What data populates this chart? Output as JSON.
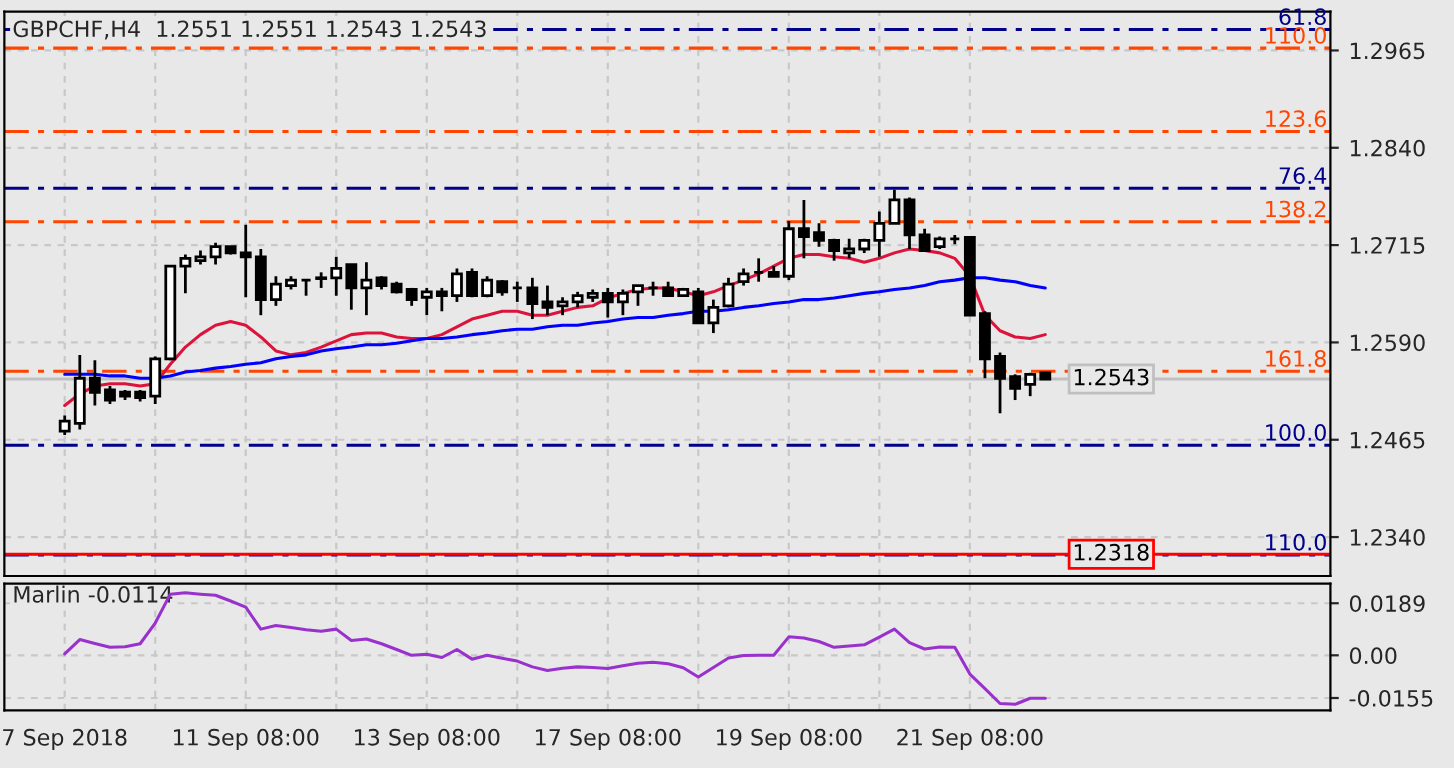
{
  "chart_data": [
    {
      "type": "candlestick",
      "title": "GBPCHF,H4  1.2551 1.2551 1.2543 1.2543",
      "categories": [
        null,
        null,
        null,
        null,
        null,
        null,
        null,
        null,
        null,
        null,
        null,
        null,
        null,
        null,
        null,
        null,
        null,
        null,
        null,
        null,
        null,
        null,
        null,
        null,
        null,
        null,
        null,
        null,
        null,
        null,
        null,
        null,
        null,
        null,
        null,
        null,
        null,
        null,
        null,
        null,
        null,
        null,
        null,
        null,
        null,
        null,
        null,
        null,
        null,
        null,
        null,
        null,
        null,
        null,
        null,
        null,
        null,
        null,
        null,
        null,
        null,
        null,
        null,
        null,
        null,
        null
      ],
      "ohlc": [
        [
          1.2476,
          1.2496,
          1.2471,
          1.2489
        ],
        [
          1.2486,
          1.2574,
          1.2478,
          1.2544
        ],
        [
          1.2544,
          1.2567,
          1.2509,
          1.2526
        ],
        [
          1.2529,
          1.2534,
          1.2511,
          1.2516
        ],
        [
          1.2526,
          1.2529,
          1.2516,
          1.2521
        ],
        [
          1.2526,
          1.2529,
          1.2514,
          1.2519
        ],
        [
          1.2521,
          1.2572,
          1.2511,
          1.2569
        ],
        [
          1.2569,
          1.2689,
          1.2567,
          1.2688
        ],
        [
          1.2688,
          1.2703,
          1.2653,
          1.2698
        ],
        [
          1.2695,
          1.2708,
          1.269,
          1.27
        ],
        [
          1.27,
          1.2718,
          1.269,
          1.2713
        ],
        [
          1.2713,
          1.2713,
          1.2703,
          1.2705
        ],
        [
          1.2705,
          1.2741,
          1.2648,
          1.27
        ],
        [
          1.27,
          1.271,
          1.2625,
          1.2645
        ],
        [
          1.2645,
          1.2675,
          1.2637,
          1.2665
        ],
        [
          1.2663,
          1.2675,
          1.2658,
          1.267
        ],
        [
          1.267,
          1.267,
          1.265,
          1.267
        ],
        [
          1.2672,
          1.268,
          1.266,
          1.2673
        ],
        [
          1.2673,
          1.27,
          1.265,
          1.2685
        ],
        [
          1.269,
          1.269,
          1.2632,
          1.266
        ],
        [
          1.266,
          1.2693,
          1.2625,
          1.267
        ],
        [
          1.2673,
          1.2675,
          1.2658,
          1.2663
        ],
        [
          1.2665,
          1.2668,
          1.2653,
          1.2655
        ],
        [
          1.2658,
          1.266,
          1.2637,
          1.2645
        ],
        [
          1.2648,
          1.266,
          1.2625,
          1.2655
        ],
        [
          1.2655,
          1.266,
          1.263,
          1.265
        ],
        [
          1.265,
          1.2685,
          1.2642,
          1.2678
        ],
        [
          1.268,
          1.2685,
          1.2648,
          1.265
        ],
        [
          1.265,
          1.2675,
          1.2648,
          1.267
        ],
        [
          1.2668,
          1.267,
          1.265,
          1.2655
        ],
        [
          1.266,
          1.2668,
          1.2642,
          1.266
        ],
        [
          1.266,
          1.2673,
          1.262,
          1.264
        ],
        [
          1.2642,
          1.2663,
          1.2625,
          1.2635
        ],
        [
          1.2637,
          1.2648,
          1.2625,
          1.2642
        ],
        [
          1.2642,
          1.2655,
          1.2635,
          1.265
        ],
        [
          1.2648,
          1.2658,
          1.2642,
          1.2653
        ],
        [
          1.2653,
          1.266,
          1.2622,
          1.2642
        ],
        [
          1.2642,
          1.2658,
          1.2625,
          1.2653
        ],
        [
          1.2655,
          1.2663,
          1.2637,
          1.2663
        ],
        [
          1.266,
          1.2668,
          1.265,
          1.266
        ],
        [
          1.266,
          1.2668,
          1.265,
          1.265
        ],
        [
          1.265,
          1.266,
          1.265,
          1.2658
        ],
        [
          1.2655,
          1.266,
          1.2615,
          1.2615
        ],
        [
          1.2615,
          1.2645,
          1.2602,
          1.2635
        ],
        [
          1.2637,
          1.2673,
          1.2635,
          1.2665
        ],
        [
          1.2668,
          1.2685,
          1.2663,
          1.2678
        ],
        [
          1.268,
          1.2698,
          1.2668,
          1.268
        ],
        [
          1.268,
          1.2688,
          1.2675,
          1.2675
        ],
        [
          1.2675,
          1.2746,
          1.267,
          1.2736
        ],
        [
          1.2736,
          1.2773,
          1.2698,
          1.2726
        ],
        [
          1.2731,
          1.2743,
          1.2713,
          1.2721
        ],
        [
          1.2721,
          1.2723,
          1.2695,
          1.2708
        ],
        [
          1.2705,
          1.2723,
          1.2698,
          1.271
        ],
        [
          1.271,
          1.2723,
          1.2705,
          1.2721
        ],
        [
          1.2721,
          1.2758,
          1.27,
          1.2743
        ],
        [
          1.2743,
          1.2786,
          1.2743,
          1.2773
        ],
        [
          1.2773,
          1.2776,
          1.271,
          1.2728
        ],
        [
          1.2728,
          1.2736,
          1.2708,
          1.2708
        ],
        [
          1.2713,
          1.2726,
          1.271,
          1.2723
        ],
        [
          1.2723,
          1.2728,
          1.2716,
          1.2723
        ],
        [
          1.2725,
          1.2725,
          1.2625,
          1.2625
        ],
        [
          1.2627,
          1.263,
          1.2544,
          1.2569
        ],
        [
          1.2572,
          1.2577,
          1.2499,
          1.2544
        ],
        [
          1.2546,
          1.2549,
          1.2516,
          1.2531
        ],
        [
          1.2536,
          1.2551,
          1.2521,
          1.2549
        ],
        [
          1.2551,
          1.2551,
          1.2543,
          1.2543
        ]
      ],
      "series": [
        {
          "type": "line",
          "color": "#dc143c",
          "values": [
            1.2509,
            1.2524,
            1.2534,
            1.2537,
            1.2537,
            1.2534,
            1.2537,
            1.2562,
            1.2584,
            1.26,
            1.2612,
            1.2617,
            1.2612,
            1.2597,
            1.2579,
            1.2574,
            1.2577,
            1.2584,
            1.2592,
            1.26,
            1.2602,
            1.2602,
            1.2597,
            1.2595,
            1.2595,
            1.26,
            1.261,
            1.262,
            1.2625,
            1.263,
            1.263,
            1.2625,
            1.2625,
            1.263,
            1.2635,
            1.2637,
            1.2647,
            1.2653,
            1.2658,
            1.266,
            1.266,
            1.2655,
            1.265,
            1.2655,
            1.2663,
            1.267,
            1.2678,
            1.2688,
            1.2698,
            1.2703,
            1.2703,
            1.27,
            1.2698,
            1.2693,
            1.2698,
            1.2705,
            1.271,
            1.2708,
            1.2705,
            1.2698,
            1.2675,
            1.2625,
            1.2605,
            1.2597,
            1.2595,
            1.26
          ]
        },
        {
          "type": "line",
          "color": "#0000ff",
          "values": [
            1.2549,
            1.2549,
            1.2549,
            1.2547,
            1.2547,
            1.2544,
            1.2544,
            1.2547,
            1.2552,
            1.2554,
            1.2557,
            1.2559,
            1.2562,
            1.2564,
            1.2569,
            1.2572,
            1.2574,
            1.2579,
            1.2582,
            1.2584,
            1.2587,
            1.2587,
            1.2589,
            1.2592,
            1.2595,
            1.2595,
            1.2597,
            1.26,
            1.2602,
            1.2605,
            1.2607,
            1.2607,
            1.261,
            1.2612,
            1.2612,
            1.2615,
            1.2617,
            1.262,
            1.2622,
            1.2622,
            1.2625,
            1.2627,
            1.263,
            1.263,
            1.2632,
            1.2635,
            1.2637,
            1.264,
            1.2642,
            1.2645,
            1.2645,
            1.2647,
            1.265,
            1.2653,
            1.2655,
            1.2658,
            1.266,
            1.2663,
            1.2668,
            1.267,
            1.2673,
            1.2673,
            1.267,
            1.2668,
            1.2663,
            1.266
          ]
        }
      ],
      "ylim": [
        1.229,
        1.3015
      ],
      "yticks": [
        {
          "value": 1.234,
          "label": "1.2340"
        },
        {
          "value": 1.2465,
          "label": "1.2465"
        },
        {
          "value": 1.259,
          "label": "1.2590"
        },
        {
          "value": 1.2715,
          "label": "1.2715"
        },
        {
          "value": 1.284,
          "label": "1.2840"
        },
        {
          "value": 1.2965,
          "label": "1.2965"
        }
      ],
      "ref_lines": [
        {
          "axis": "y",
          "value": 1.2992,
          "color": "#00008b",
          "line_style": "dashed"
        },
        {
          "axis": "y",
          "value": 1.2968,
          "color": "#ff4500",
          "line_style": "dashed"
        },
        {
          "axis": "y",
          "value": 1.2861,
          "color": "#ff4500",
          "line_style": "dashed"
        },
        {
          "axis": "y",
          "value": 1.2788,
          "color": "#00008b",
          "line_style": "dashed"
        },
        {
          "axis": "y",
          "value": 1.2745,
          "color": "#ff4500",
          "line_style": "dashed"
        },
        {
          "axis": "y",
          "value": 1.2553,
          "color": "#ff4500",
          "line_style": "dashed"
        },
        {
          "axis": "y",
          "value": 1.2458,
          "color": "#00008b",
          "line_style": "dashed"
        },
        {
          "axis": "y",
          "value": 1.2317,
          "color": "#00008b",
          "line_style": "dashed"
        },
        {
          "axis": "y",
          "value": 1.2543,
          "label": "1.2543",
          "color": "#c0c0c0",
          "line_style": "solid"
        },
        {
          "axis": "y",
          "value": 1.2318,
          "label": "1.2318",
          "color": "#ff0000",
          "line_style": "solid"
        }
      ],
      "annotations": [
        {
          "text": "61.8",
          "y": 1.2992
        },
        {
          "text": "110.0",
          "y": 1.2968
        },
        {
          "text": "123.6",
          "y": 1.2861
        },
        {
          "text": "76.4",
          "y": 1.2788
        },
        {
          "text": "138.2",
          "y": 1.2745
        },
        {
          "text": "161.8",
          "y": 1.2553
        },
        {
          "text": "100.0",
          "y": 1.2458
        },
        {
          "text": "110.0",
          "y": 1.2317
        }
      ],
      "grid": true,
      "tick_labels": "y"
    },
    {
      "type": "line",
      "title": "Marlin -0.0114",
      "categories": [
        "7 Sep 2018",
        null,
        null,
        null,
        null,
        null,
        null,
        null,
        null,
        null,
        null,
        null,
        "11 Sep 08:00",
        null,
        null,
        null,
        null,
        null,
        null,
        null,
        null,
        null,
        null,
        null,
        "13 Sep 08:00",
        null,
        null,
        null,
        null,
        null,
        null,
        null,
        null,
        null,
        null,
        null,
        "17 Sep 08:00",
        null,
        null,
        null,
        null,
        null,
        null,
        null,
        null,
        null,
        null,
        null,
        "19 Sep 08:00",
        null,
        null,
        null,
        null,
        null,
        null,
        null,
        null,
        null,
        null,
        null,
        "21 Sep 08:00",
        null,
        null,
        null,
        null,
        null
      ],
      "series": [
        {
          "color": "#9932cc",
          "values": [
            0.0005,
            0.0057,
            0.0043,
            0.0029,
            0.0031,
            0.0042,
            0.0117,
            0.0222,
            0.0227,
            0.0222,
            0.0218,
            0.0197,
            0.0175,
            0.0095,
            0.0108,
            0.0101,
            0.0093,
            0.0087,
            0.0095,
            0.0054,
            0.0059,
            0.0042,
            0.0021,
            0.0,
            0.0004,
            -0.0008,
            0.0021,
            -0.0014,
            0.0,
            -0.0011,
            -0.0021,
            -0.0042,
            -0.0055,
            -0.0047,
            -0.0042,
            -0.0044,
            -0.0048,
            -0.0038,
            -0.0029,
            -0.0025,
            -0.0031,
            -0.0045,
            -0.0079,
            -0.0044,
            -0.001,
            -0.0001,
            0.0,
            0.0,
            0.0067,
            0.0063,
            0.005,
            0.0029,
            0.0034,
            0.0038,
            0.0066,
            0.0095,
            0.0046,
            0.0023,
            0.003,
            0.0029,
            -0.0068,
            -0.0121,
            -0.0175,
            -0.0178,
            -0.0156,
            -0.0156
          ]
        }
      ],
      "ylim": [
        -0.02,
        0.026
      ],
      "yticks": [
        -0.0155,
        {
          "value": 0,
          "label": "0.00"
        },
        0.0189
      ],
      "grid": true
    }
  ]
}
